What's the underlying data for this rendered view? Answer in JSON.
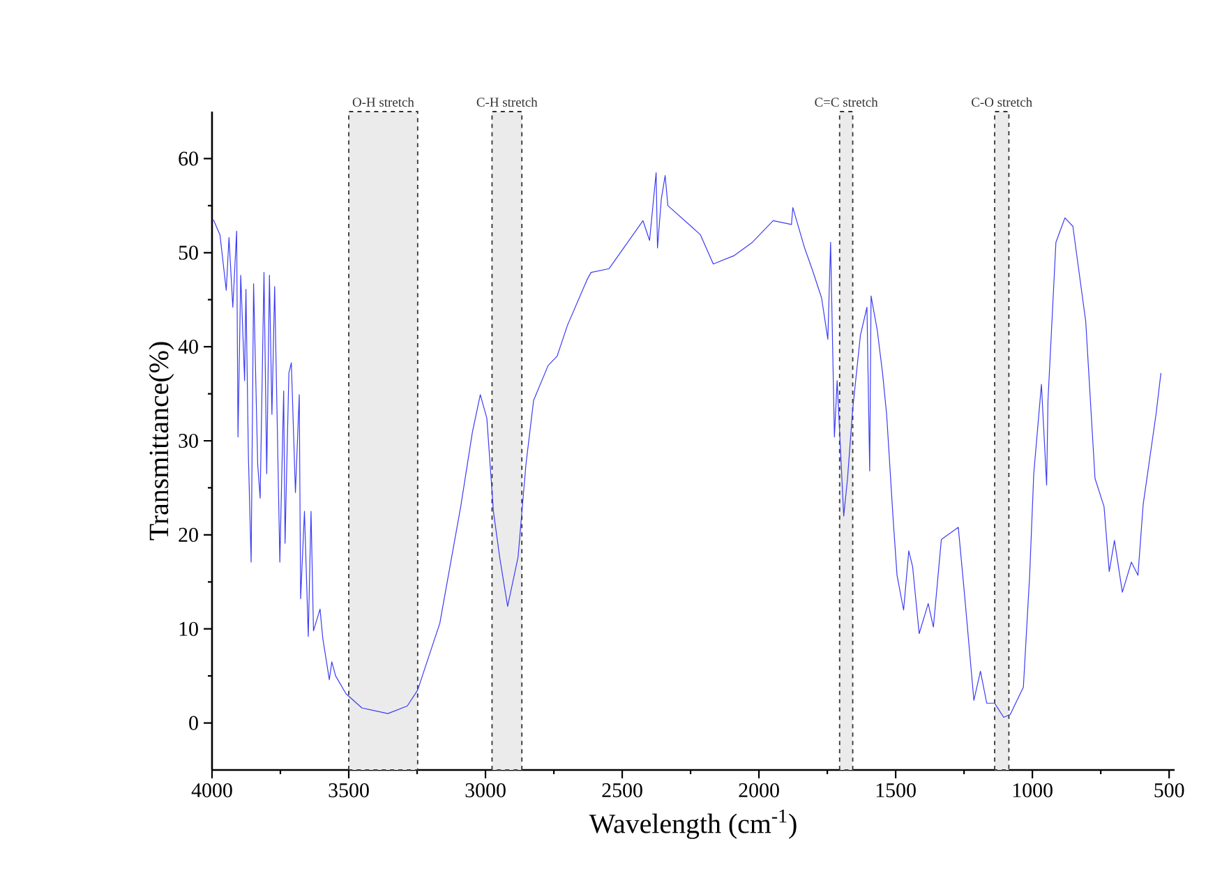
{
  "chart_data": {
    "type": "line",
    "xlabel": "Wavelength (cm$^{-1}$)",
    "ylabel": "Transmittance(%)",
    "xlim": [
      4000,
      480
    ],
    "ylim": [
      -5,
      65
    ],
    "xticks": [
      4000,
      3500,
      3000,
      2500,
      2000,
      1500,
      1000,
      500
    ],
    "yticks": [
      0,
      10,
      20,
      30,
      40,
      50,
      60
    ],
    "grid": false,
    "marker": "none",
    "line_style": "solid",
    "bands": [
      {
        "axis": "x",
        "from": 3500,
        "to": 3248,
        "label": "O-H stretch",
        "color": "#333333"
      },
      {
        "axis": "x",
        "from": 2976,
        "to": 2867,
        "label": "C-H stretch",
        "color": "#333333"
      },
      {
        "axis": "x",
        "from": 1705,
        "to": 1657,
        "label": "C=C stretch",
        "color": "#333333"
      },
      {
        "axis": "x",
        "from": 1138,
        "to": 1086,
        "label": "C-O stretch",
        "color": "#333333"
      }
    ],
    "series": [
      {
        "color": "#3b3bf5",
        "x": [
          3995,
          3971,
          3948,
          3938,
          3924,
          3910,
          3905,
          3895,
          3881,
          3876,
          3867,
          3857,
          3848,
          3833,
          3824,
          3810,
          3800,
          3790,
          3781,
          3771,
          3752,
          3738,
          3733,
          3719,
          3710,
          3695,
          3681,
          3676,
          3662,
          3648,
          3638,
          3629,
          3605,
          3595,
          3571,
          3562,
          3548,
          3510,
          3452,
          3357,
          3286,
          3248,
          3167,
          3090,
          3048,
          3019,
          2995,
          2971,
          2948,
          2919,
          2881,
          2852,
          2824,
          2771,
          2738,
          2700,
          2629,
          2614,
          2548,
          2424,
          2400,
          2376,
          2371,
          2357,
          2343,
          2333,
          2248,
          2214,
          2167,
          2090,
          2024,
          1948,
          1881,
          1876,
          1833,
          1805,
          1771,
          1748,
          1738,
          1724,
          1714,
          1690,
          1676,
          1657,
          1629,
          1605,
          1595,
          1590,
          1567,
          1548,
          1533,
          1510,
          1495,
          1471,
          1452,
          1438,
          1414,
          1381,
          1362,
          1333,
          1271,
          1248,
          1214,
          1190,
          1167,
          1138,
          1105,
          1081,
          1033,
          1010,
          995,
          967,
          948,
          943,
          914,
          881,
          852,
          805,
          771,
          738,
          719,
          700,
          671,
          638,
          614,
          595,
          548,
          530
        ],
        "values": [
          53.5,
          51.9,
          46,
          51.6,
          44.2,
          52.3,
          30.4,
          47.6,
          36.4,
          46.1,
          28.4,
          17.1,
          46.7,
          27.5,
          23.9,
          47.9,
          26.5,
          47.6,
          32.8,
          46.4,
          17.1,
          35.3,
          19.1,
          37.2,
          38.3,
          24.5,
          34.9,
          13.2,
          22.5,
          9.2,
          22.5,
          9.8,
          12.1,
          9,
          4.6,
          6.5,
          5,
          3.1,
          1.6,
          1,
          1.8,
          3.5,
          10.6,
          23.1,
          30.9,
          34.9,
          32.4,
          22.5,
          17.6,
          12.4,
          17.6,
          27.5,
          34.3,
          38,
          39,
          42.3,
          47.1,
          47.9,
          48.3,
          53.4,
          51.3,
          58.5,
          50.5,
          55.7,
          58.2,
          55,
          52.8,
          51.9,
          48.8,
          49.7,
          51.1,
          53.4,
          53,
          54.8,
          50.5,
          48.2,
          45.2,
          40.8,
          51.1,
          30.4,
          36.4,
          22,
          26,
          33.4,
          41.2,
          44.2,
          26.8,
          45.4,
          41.7,
          37.2,
          32.8,
          22,
          15.7,
          12,
          18.3,
          16.6,
          9.5,
          12.7,
          10.2,
          19.5,
          20.8,
          13.6,
          2.4,
          5.5,
          2.1,
          2.1,
          0.6,
          0.9,
          3.8,
          15.7,
          26.5,
          36,
          25.3,
          34.3,
          51.1,
          53.7,
          52.8,
          42.7,
          26,
          23,
          16.1,
          19.4,
          13.9,
          17.1,
          15.7,
          23.2,
          32.8,
          37.2
        ]
      }
    ]
  }
}
